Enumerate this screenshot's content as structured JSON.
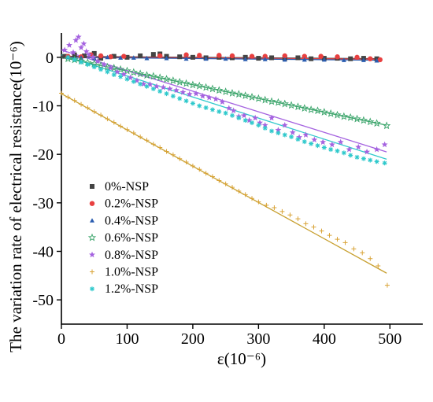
{
  "chart_data": {
    "type": "scatter",
    "title": "",
    "xlabel": "ε(10⁻⁶)",
    "ylabel": "The variation rate of electrical resistance(10⁻⁶)",
    "xlim": [
      0,
      550
    ],
    "ylim": [
      -55,
      5
    ],
    "xticks": [
      0,
      100,
      200,
      300,
      400,
      500
    ],
    "xtick_labels": [
      "0",
      "100",
      "200",
      "300",
      "400",
      "500"
    ],
    "yticks": [
      0,
      -10,
      -20,
      -30,
      -40,
      -50
    ],
    "ytick_labels": [
      "0",
      "-10",
      "-20",
      "-30",
      "-40",
      "-50"
    ],
    "grid": false,
    "legend_position": "left-middle",
    "series": [
      {
        "name": "0%-NSP",
        "color": "#444444",
        "marker": "square",
        "line_color": "#333333",
        "fit": [
          [
            0,
            0.2
          ],
          [
            480,
            -0.3
          ]
        ],
        "points": [
          [
            5,
            0.2
          ],
          [
            20,
            0.5
          ],
          [
            35,
            0.3
          ],
          [
            50,
            0.8
          ],
          [
            60,
            -0.2
          ],
          [
            80,
            0.2
          ],
          [
            100,
            0
          ],
          [
            120,
            0.3
          ],
          [
            140,
            0.6
          ],
          [
            150,
            0.7
          ],
          [
            160,
            0.2
          ],
          [
            180,
            0.1
          ],
          [
            200,
            0
          ],
          [
            220,
            -0.1
          ],
          [
            240,
            0
          ],
          [
            260,
            -0.1
          ],
          [
            280,
            0
          ],
          [
            300,
            -0.2
          ],
          [
            320,
            -0.1
          ],
          [
            340,
            -0.2
          ],
          [
            360,
            -0.1
          ],
          [
            380,
            -0.3
          ],
          [
            400,
            -0.2
          ],
          [
            420,
            -0.2
          ],
          [
            440,
            -0.3
          ],
          [
            460,
            -0.2
          ],
          [
            480,
            -0.3
          ]
        ]
      },
      {
        "name": "0.2%-NSP",
        "color": "#e84040",
        "marker": "circle",
        "line_color": "#e84040",
        "fit": [
          [
            0,
            0.1
          ],
          [
            485,
            -0.4
          ]
        ],
        "points": [
          [
            10,
            0.2
          ],
          [
            30,
            0.1
          ],
          [
            45,
            0.5
          ],
          [
            60,
            0.3
          ],
          [
            75,
            0.1
          ],
          [
            95,
            0.2
          ],
          [
            150,
            0.3
          ],
          [
            190,
            0.5
          ],
          [
            210,
            0.4
          ],
          [
            240,
            0.4
          ],
          [
            260,
            0.3
          ],
          [
            290,
            0.2
          ],
          [
            310,
            0.2
          ],
          [
            340,
            0.3
          ],
          [
            370,
            0.2
          ],
          [
            395,
            0.2
          ],
          [
            420,
            0.1
          ],
          [
            450,
            0
          ],
          [
            470,
            -0.3
          ],
          [
            485,
            -0.5
          ]
        ]
      },
      {
        "name": "0.4%-NSP",
        "color": "#2a5db0",
        "marker": "triangle",
        "line_color": "#2a5db0",
        "fit": [
          [
            0,
            0
          ],
          [
            480,
            -0.6
          ]
        ],
        "points": [
          [
            10,
            0
          ],
          [
            30,
            -0.1
          ],
          [
            50,
            -0.2
          ],
          [
            70,
            0
          ],
          [
            90,
            -0.1
          ],
          [
            110,
            -0.1
          ],
          [
            130,
            -0.2
          ],
          [
            160,
            -0.2
          ],
          [
            190,
            -0.3
          ],
          [
            220,
            -0.3
          ],
          [
            250,
            -0.3
          ],
          [
            280,
            -0.4
          ],
          [
            310,
            -0.4
          ],
          [
            340,
            -0.5
          ],
          [
            370,
            -0.5
          ],
          [
            400,
            -0.5
          ],
          [
            430,
            -0.6
          ],
          [
            460,
            -0.6
          ],
          [
            480,
            -0.7
          ]
        ]
      },
      {
        "name": "0.6%-NSP",
        "color": "#3aa46a",
        "marker": "star-open",
        "line_color": "#3aa46a",
        "fit": [
          [
            0,
            0
          ],
          [
            495,
            -14
          ]
        ],
        "points": [
          [
            10,
            -0.3
          ],
          [
            20,
            -0.5
          ],
          [
            30,
            -0.8
          ],
          [
            40,
            -1.1
          ],
          [
            50,
            -1.3
          ],
          [
            60,
            -1.7
          ],
          [
            70,
            -2.0
          ],
          [
            80,
            -2.2
          ],
          [
            90,
            -2.5
          ],
          [
            100,
            -2.8
          ],
          [
            110,
            -3.1
          ],
          [
            120,
            -3.4
          ],
          [
            130,
            -3.7
          ],
          [
            140,
            -3.9
          ],
          [
            150,
            -4.2
          ],
          [
            160,
            -4.5
          ],
          [
            170,
            -4.8
          ],
          [
            180,
            -5.1
          ],
          [
            190,
            -5.4
          ],
          [
            200,
            -5.7
          ],
          [
            210,
            -5.9
          ],
          [
            220,
            -6.2
          ],
          [
            230,
            -6.5
          ],
          [
            240,
            -6.8
          ],
          [
            250,
            -7.1
          ],
          [
            260,
            -7.4
          ],
          [
            270,
            -7.6
          ],
          [
            280,
            -7.9
          ],
          [
            290,
            -8.2
          ],
          [
            300,
            -8.5
          ],
          [
            310,
            -8.8
          ],
          [
            320,
            -9.1
          ],
          [
            330,
            -9.3
          ],
          [
            340,
            -9.6
          ],
          [
            350,
            -9.9
          ],
          [
            360,
            -10.2
          ],
          [
            370,
            -10.5
          ],
          [
            380,
            -10.8
          ],
          [
            390,
            -11.0
          ],
          [
            400,
            -11.3
          ],
          [
            410,
            -11.6
          ],
          [
            420,
            -11.9
          ],
          [
            430,
            -12.2
          ],
          [
            440,
            -12.4
          ],
          [
            450,
            -12.7
          ],
          [
            460,
            -13.0
          ],
          [
            470,
            -13.3
          ],
          [
            480,
            -13.6
          ],
          [
            495,
            -14.1
          ]
        ]
      },
      {
        "name": "0.8%-NSP",
        "color": "#a563e0",
        "marker": "star",
        "line_color": "#a563e0",
        "fit": [
          [
            0,
            1.5
          ],
          [
            495,
            -19.5
          ]
        ],
        "points": [
          [
            5,
            1.5
          ],
          [
            12,
            2.5
          ],
          [
            18,
            1.0
          ],
          [
            22,
            3.5
          ],
          [
            26,
            4.2
          ],
          [
            30,
            2.0
          ],
          [
            34,
            2.8
          ],
          [
            38,
            1.2
          ],
          [
            42,
            0.5
          ],
          [
            48,
            0
          ],
          [
            55,
            -0.8
          ],
          [
            65,
            -1.5
          ],
          [
            75,
            -2.2
          ],
          [
            85,
            -3.0
          ],
          [
            95,
            -3.5
          ],
          [
            105,
            -4.2
          ],
          [
            115,
            -4.8
          ],
          [
            125,
            -5.5
          ],
          [
            135,
            -5.6
          ],
          [
            145,
            -6.0
          ],
          [
            155,
            -6.2
          ],
          [
            165,
            -6.5
          ],
          [
            175,
            -6.8
          ],
          [
            185,
            -7.2
          ],
          [
            195,
            -7.6
          ],
          [
            205,
            -7.5
          ],
          [
            215,
            -8.0
          ],
          [
            225,
            -8.3
          ],
          [
            235,
            -8.6
          ],
          [
            245,
            -9.2
          ],
          [
            255,
            -10.5
          ],
          [
            262,
            -11.0
          ],
          [
            270,
            -12.2
          ],
          [
            278,
            -12.0
          ],
          [
            286,
            -13.0
          ],
          [
            295,
            -12.5
          ],
          [
            302,
            -13.5
          ],
          [
            310,
            -14.0
          ],
          [
            320,
            -12.5
          ],
          [
            330,
            -15.0
          ],
          [
            340,
            -14.0
          ],
          [
            352,
            -15.5
          ],
          [
            362,
            -16.5
          ],
          [
            372,
            -16.0
          ],
          [
            385,
            -17.0
          ],
          [
            398,
            -17.5
          ],
          [
            412,
            -18.0
          ],
          [
            425,
            -17.5
          ],
          [
            438,
            -19.0
          ],
          [
            452,
            -18.5
          ],
          [
            465,
            -19.5
          ],
          [
            480,
            -19.0
          ],
          [
            492,
            -18.0
          ]
        ]
      },
      {
        "name": "1.0%-NSP",
        "color": "#d9a336",
        "marker": "plus",
        "line_color": "#c8a030",
        "fit": [
          [
            0,
            -7.5
          ],
          [
            495,
            -44.5
          ]
        ],
        "points": [
          [
            0,
            -7.4
          ],
          [
            10,
            -8.2
          ],
          [
            20,
            -8.9
          ],
          [
            30,
            -9.7
          ],
          [
            40,
            -10.4
          ],
          [
            50,
            -11.2
          ],
          [
            60,
            -11.9
          ],
          [
            70,
            -12.7
          ],
          [
            80,
            -13.4
          ],
          [
            90,
            -14.2
          ],
          [
            100,
            -14.9
          ],
          [
            110,
            -15.6
          ],
          [
            120,
            -16.4
          ],
          [
            130,
            -17.1
          ],
          [
            140,
            -17.9
          ],
          [
            150,
            -18.6
          ],
          [
            160,
            -19.4
          ],
          [
            170,
            -20.1
          ],
          [
            180,
            -20.9
          ],
          [
            190,
            -21.6
          ],
          [
            200,
            -22.4
          ],
          [
            210,
            -23.1
          ],
          [
            220,
            -23.9
          ],
          [
            230,
            -24.6
          ],
          [
            240,
            -25.4
          ],
          [
            250,
            -26.1
          ],
          [
            260,
            -26.8
          ],
          [
            270,
            -27.6
          ],
          [
            280,
            -28.3
          ],
          [
            290,
            -29.1
          ],
          [
            300,
            -29.8
          ],
          [
            312,
            -30.5
          ],
          [
            324,
            -31.0
          ],
          [
            336,
            -31.8
          ],
          [
            348,
            -32.5
          ],
          [
            360,
            -33.3
          ],
          [
            372,
            -34.3
          ],
          [
            384,
            -35.0
          ],
          [
            396,
            -35.8
          ],
          [
            408,
            -36.7
          ],
          [
            420,
            -37.5
          ],
          [
            432,
            -38.2
          ],
          [
            445,
            -39.5
          ],
          [
            458,
            -40.3
          ],
          [
            470,
            -41.5
          ],
          [
            482,
            -43.0
          ],
          [
            496,
            -47.0
          ]
        ]
      },
      {
        "name": "1.2%-NSP",
        "color": "#2fc9cc",
        "marker": "asterisk",
        "line_color": "#2fc9cc",
        "fit": [
          [
            0,
            0.5
          ],
          [
            495,
            -21.0
          ]
        ],
        "points": [
          [
            10,
            0
          ],
          [
            20,
            -0.5
          ],
          [
            30,
            -1.0
          ],
          [
            40,
            -1.5
          ],
          [
            50,
            -2.0
          ],
          [
            60,
            -2.5
          ],
          [
            70,
            -3.0
          ],
          [
            80,
            -3.6
          ],
          [
            90,
            -4.0
          ],
          [
            100,
            -4.5
          ],
          [
            110,
            -5.0
          ],
          [
            120,
            -5.5
          ],
          [
            130,
            -6.0
          ],
          [
            140,
            -6.5
          ],
          [
            150,
            -7.0
          ],
          [
            160,
            -7.5
          ],
          [
            170,
            -8.0
          ],
          [
            180,
            -8.5
          ],
          [
            190,
            -9.0
          ],
          [
            200,
            -9.5
          ],
          [
            210,
            -10.0
          ],
          [
            220,
            -10.4
          ],
          [
            230,
            -10.8
          ],
          [
            240,
            -11.2
          ],
          [
            250,
            -11.5
          ],
          [
            260,
            -12.0
          ],
          [
            270,
            -12.5
          ],
          [
            280,
            -13.0
          ],
          [
            290,
            -13.5
          ],
          [
            300,
            -14.0
          ],
          [
            310,
            -14.6
          ],
          [
            320,
            -15.2
          ],
          [
            330,
            -15.6
          ],
          [
            340,
            -16.0
          ],
          [
            350,
            -16.4
          ],
          [
            360,
            -16.9
          ],
          [
            370,
            -17.4
          ],
          [
            380,
            -17.8
          ],
          [
            390,
            -18.2
          ],
          [
            400,
            -18.6
          ],
          [
            410,
            -19.0
          ],
          [
            420,
            -19.3
          ],
          [
            430,
            -19.7
          ],
          [
            440,
            -20.2
          ],
          [
            450,
            -20.6
          ],
          [
            460,
            -20.9
          ],
          [
            470,
            -21.2
          ],
          [
            480,
            -21.5
          ],
          [
            492,
            -21.8
          ]
        ]
      }
    ]
  }
}
